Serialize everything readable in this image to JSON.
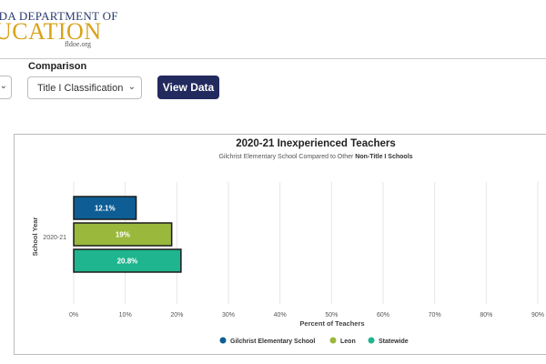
{
  "header": {
    "logo_line1": "IDA DEPARTMENT OF",
    "logo_line2": "UCATION",
    "logo_url": "fldoe.org"
  },
  "filters": {
    "comparison_label": "Comparison",
    "comparison_value": "Title I Classification",
    "view_button": "View Data"
  },
  "chart_data": {
    "type": "bar",
    "orientation": "horizontal",
    "title": "2020-21 Inexperienced Teachers",
    "subtitle_prefix": "Gilchrist Elementary School Compared to Other",
    "subtitle_bold": "Non-Title I Schools",
    "xlabel": "Percent of Teachers",
    "ylabel": "School Year",
    "categories": [
      "2020-21"
    ],
    "xlim": [
      0,
      90
    ],
    "xticks": [
      "0%",
      "10%",
      "20%",
      "30%",
      "40%",
      "50%",
      "60%",
      "70%",
      "80%",
      "90%"
    ],
    "grid": true,
    "legend_position": "bottom",
    "series": [
      {
        "name": "Gilchrist Elementary School",
        "values": [
          12.1
        ],
        "label": "12.1%",
        "color": "#0e5e95"
      },
      {
        "name": "Leon",
        "values": [
          19
        ],
        "label": "19%",
        "color": "#9ab83c"
      },
      {
        "name": "Statewide",
        "values": [
          20.8
        ],
        "label": "20.8%",
        "color": "#1fb58e"
      }
    ]
  }
}
